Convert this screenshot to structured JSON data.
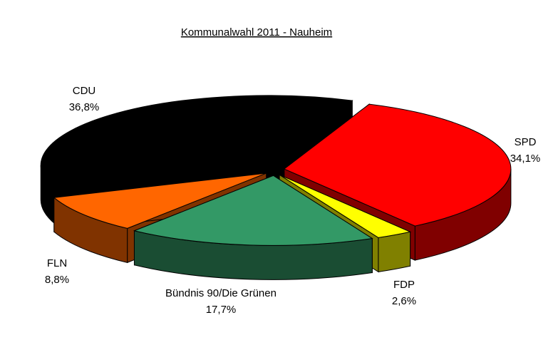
{
  "chart_data": {
    "type": "pie",
    "title": "Kommunalwahl 2011 - Nauheim",
    "categories": [
      "SPD",
      "FDP",
      "Bündnis 90/Die Grünen",
      "FLN",
      "CDU"
    ],
    "values": [
      34.1,
      2.6,
      17.7,
      8.8,
      36.8
    ],
    "value_labels": [
      "34,1%",
      "2,6%",
      "17,7%",
      "8,8%",
      "36,8%"
    ],
    "colors": [
      "#ff0000",
      "#ffff00",
      "#339966",
      "#ff6600",
      "#000000"
    ]
  }
}
